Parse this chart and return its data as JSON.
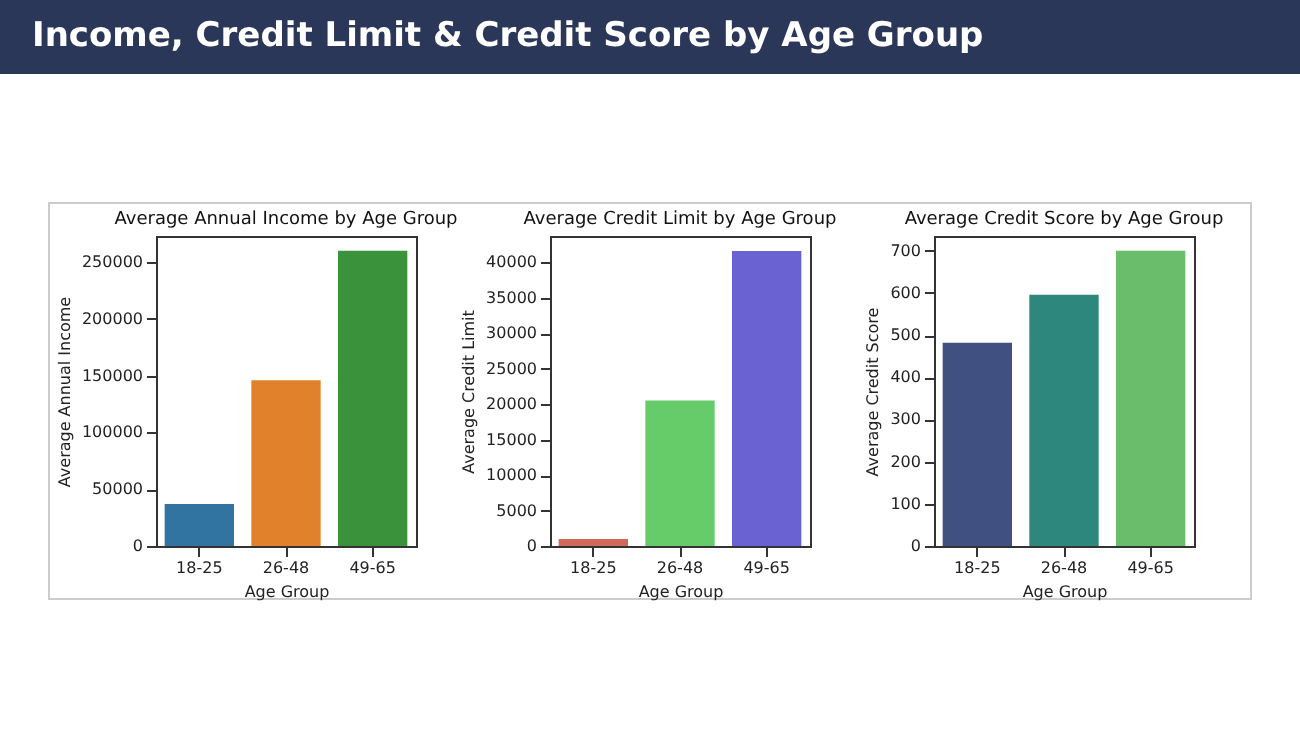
{
  "chart_data": [
    {
      "type": "other",
      "title": "Income, Credit Limit & Credit Score by Age Group"
    },
    {
      "type": "bar",
      "title": "Average Annual Income by Age Group",
      "xlabel": "Age Group",
      "ylabel": "Average Annual Income",
      "categories": [
        "18-25",
        "26-48",
        "49-65"
      ],
      "values": [
        37000,
        146000,
        260000
      ],
      "colors": [
        "#3274a1",
        "#e1812c",
        "#3a923a"
      ],
      "ylim": [
        0,
        273000
      ],
      "yticks": [
        0,
        50000,
        100000,
        150000,
        200000,
        250000
      ],
      "grid": false,
      "legend": false
    },
    {
      "type": "bar",
      "title": "Average Credit Limit by Age Group",
      "xlabel": "Age Group",
      "ylabel": "Average Credit Limit",
      "categories": [
        "18-25",
        "26-48",
        "49-65"
      ],
      "values": [
        1000,
        20500,
        41600
      ],
      "colors": [
        "#d0695a",
        "#66cc6a",
        "#6a62d2"
      ],
      "ylim": [
        0,
        43700
      ],
      "yticks": [
        0,
        5000,
        10000,
        15000,
        20000,
        25000,
        30000,
        35000,
        40000
      ],
      "grid": false,
      "legend": false
    },
    {
      "type": "bar",
      "title": "Average Credit Score by Age Group",
      "xlabel": "Age Group",
      "ylabel": "Average Credit Score",
      "categories": [
        "18-25",
        "26-48",
        "49-65"
      ],
      "values": [
        482,
        596,
        700
      ],
      "colors": [
        "#3f5081",
        "#2e877c",
        "#6abd6a"
      ],
      "ylim": [
        0,
        735
      ],
      "yticks": [
        0,
        100,
        200,
        300,
        400,
        500,
        600,
        700
      ],
      "grid": false,
      "legend": false
    }
  ]
}
